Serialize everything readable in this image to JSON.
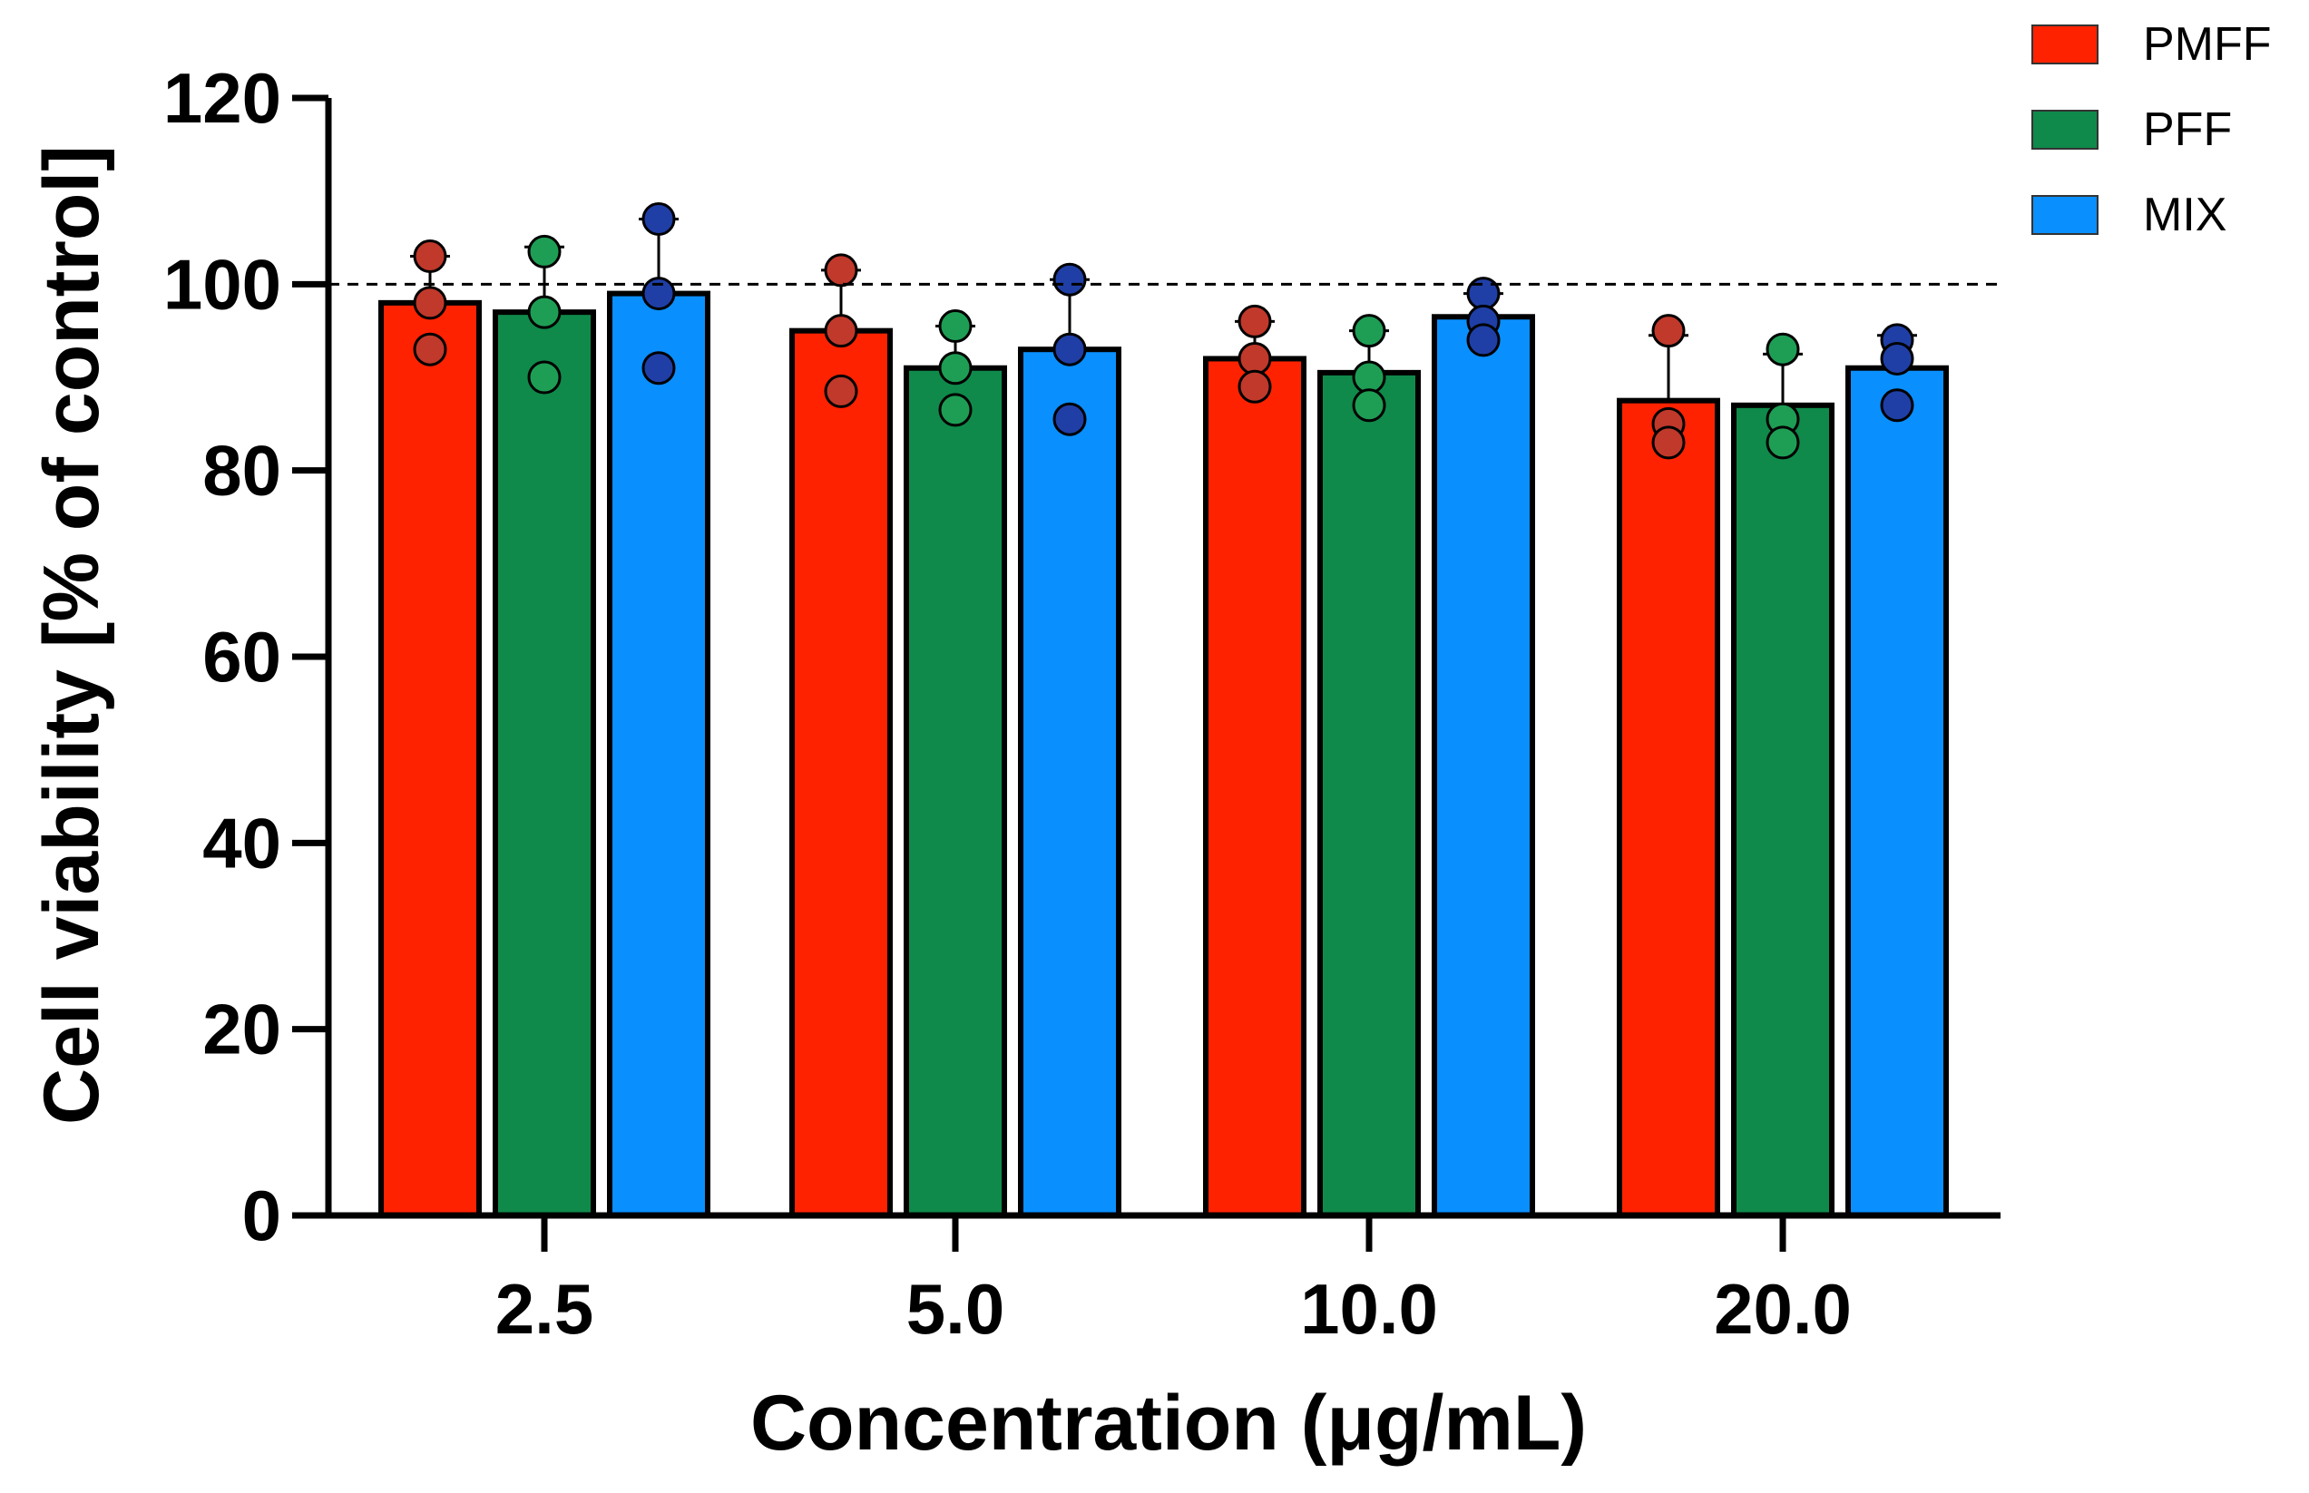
{
  "chart_data": {
    "type": "bar",
    "title": "",
    "xlabel": "Concentration (μg/mL)",
    "ylabel": "Cell viability [% of control]",
    "ylim": [
      0,
      120
    ],
    "yticks": [
      "0",
      "20",
      "40",
      "60",
      "80",
      "100",
      "120"
    ],
    "categories": [
      "2.5",
      "5.0",
      "10.0",
      "20.0"
    ],
    "reference_line": 100,
    "legend_position": "top-right",
    "series": [
      {
        "name": "PMFF",
        "color": "#ff2200",
        "dot_color": "#c0392b",
        "values": [
          98,
          95,
          92,
          87.5
        ],
        "error": [
          5,
          6.5,
          4,
          7
        ],
        "points": [
          [
            103,
            98,
            93
          ],
          [
            101.5,
            95,
            88.5
          ],
          [
            96,
            92,
            89
          ],
          [
            95,
            85,
            83
          ]
        ]
      },
      {
        "name": "PFF",
        "color": "#0f8a4a",
        "dot_color": "#1e9e54",
        "values": [
          97,
          91,
          90.5,
          87
        ],
        "error": [
          7,
          4.5,
          4.5,
          5.5
        ],
        "points": [
          [
            103.5,
            97,
            90
          ],
          [
            95.5,
            91,
            86.5
          ],
          [
            95,
            90,
            87
          ],
          [
            93,
            85.5,
            83
          ]
        ]
      },
      {
        "name": "MIX",
        "color": "#0a8fff",
        "dot_color": "#1f3fa6",
        "values": [
          99,
          93,
          96.5,
          91
        ],
        "error": [
          8,
          7.5,
          2.5,
          3.5
        ],
        "points": [
          [
            107,
            99,
            91
          ],
          [
            100.5,
            93,
            85.5
          ],
          [
            99,
            96,
            94
          ],
          [
            94,
            92,
            87
          ]
        ]
      }
    ]
  }
}
